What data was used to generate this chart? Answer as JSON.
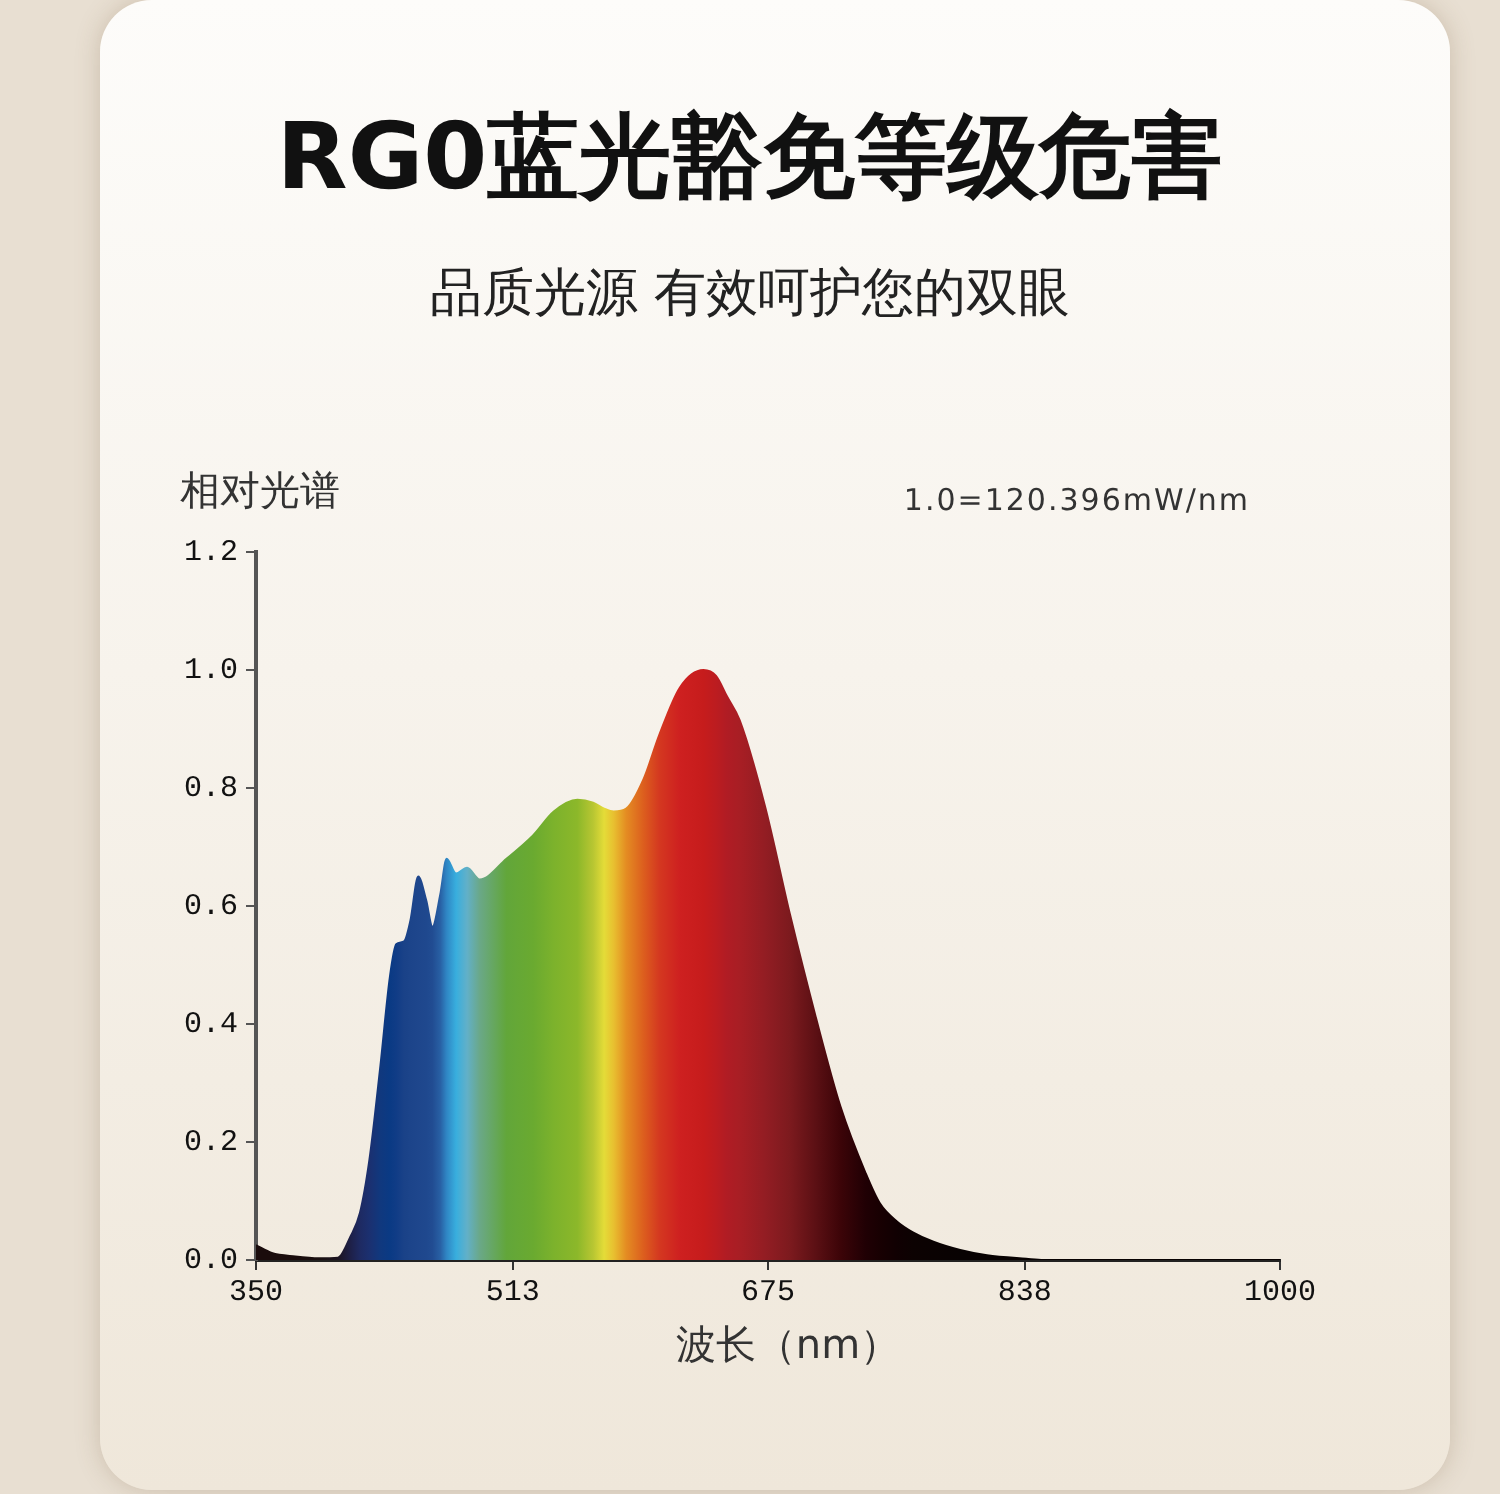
{
  "chart_data": {
    "type": "area",
    "title": "RG0蓝光豁免等级危害",
    "subtitle": "品质光源 有效呵护您的双眼",
    "xlabel": "波长（nm）",
    "ylabel": "相对光谱",
    "annotations": [
      "1.0=120.396mW/nm"
    ],
    "x": [
      350,
      360,
      375,
      390,
      402,
      410,
      416,
      422,
      429,
      435,
      439,
      444,
      448,
      453,
      458,
      462,
      467,
      471,
      477,
      484,
      492,
      509,
      526,
      539,
      554,
      564,
      571,
      577,
      585,
      596,
      606,
      619,
      634,
      642,
      649,
      657,
      673,
      689,
      705,
      721,
      737,
      746,
      757,
      767,
      780,
      797,
      814,
      839,
      850,
      1000
    ],
    "values": [
      0.025,
      0.012,
      0.006,
      0.003,
      0.004,
      0.04,
      0.08,
      0.17,
      0.33,
      0.48,
      0.535,
      0.54,
      0.575,
      0.65,
      0.61,
      0.565,
      0.62,
      0.68,
      0.655,
      0.665,
      0.645,
      0.68,
      0.72,
      0.76,
      0.78,
      0.775,
      0.765,
      0.76,
      0.765,
      0.815,
      0.89,
      0.97,
      1.0,
      0.99,
      0.955,
      0.915,
      0.77,
      0.585,
      0.415,
      0.26,
      0.147,
      0.096,
      0.065,
      0.047,
      0.031,
      0.017,
      0.008,
      0.002,
      0,
      0
    ],
    "colors": [
      "#1a0c0c",
      "#1a0c0c",
      "#1a0c0c",
      "#1a1010",
      "#1c1420",
      "#1e2048",
      "#1e2a62",
      "#1b3070",
      "#10387e",
      "#0a3a84",
      "#103c86",
      "#1a4288",
      "#1c448a",
      "#1e468c",
      "#1f488e",
      "#214c92",
      "#2860a4",
      "#2f86c4",
      "#38aede",
      "#62b0c8",
      "#6aa888",
      "#62a63a",
      "#6aaa30",
      "#7cb22c",
      "#8cb82a",
      "#b8c632",
      "#e4dc38",
      "#e8c030",
      "#e48c22",
      "#dc5e1e",
      "#d43820",
      "#ce2020",
      "#c61c1c",
      "#bc1c20",
      "#b01c24",
      "#a81e24",
      "#931d23",
      "#7c1a1e",
      "#5c1014",
      "#3c0408",
      "#200004",
      "#180002",
      "#100002",
      "#0c0202",
      "#0a0202",
      "#080202",
      "#080202",
      "#080202",
      "#080202",
      "#080202"
    ],
    "xlim": [
      350,
      1000
    ],
    "xticks": [
      350,
      513,
      675,
      838,
      1000
    ],
    "ylim": [
      0,
      1.2
    ],
    "yticks": [
      {
        "value": 0,
        "label": "0.0"
      },
      0.2,
      0.4,
      0.6,
      0.8,
      {
        "value": 1,
        "label": "1.0"
      },
      1.2
    ]
  }
}
